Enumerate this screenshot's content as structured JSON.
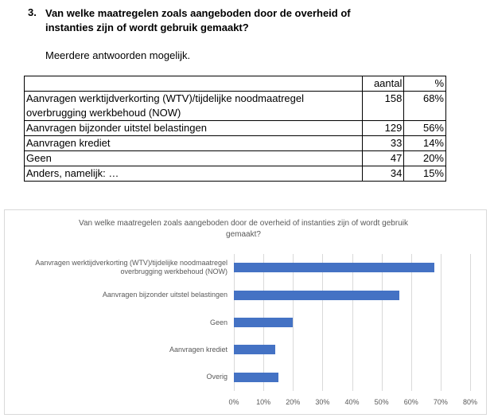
{
  "question": {
    "number": "3.",
    "text": "Van welke maatregelen zoals aangeboden door de overheid of instanties zijn of wordt gebruik gemaakt?",
    "note": "Meerdere antwoorden mogelijk."
  },
  "table": {
    "header": [
      "",
      "aantal",
      "%"
    ],
    "rows": [
      [
        "Aanvragen werktijdverkorting (WTV)/tijdelijke noodmaatregel overbrugging werkbehoud (NOW)",
        "158",
        "68%"
      ],
      [
        "Aanvragen bijzonder uitstel belastingen",
        "129",
        "56%"
      ],
      [
        "Aanvragen krediet",
        "33",
        "14%"
      ],
      [
        "Geen",
        "47",
        "20%"
      ],
      [
        "Anders, namelijk: …",
        "34",
        "15%"
      ]
    ]
  },
  "chart_data": {
    "type": "hbar",
    "title": "Van welke maatregelen zoals aangeboden door de overheid of instanties zijn of wordt gebruik gemaakt?",
    "categories": [
      "Aanvragen werktijdverkorting (WTV)/tijdelijke noodmaatregel overbrugging werkbehoud (NOW)",
      "Aanvragen bijzonder uitstel belastingen",
      "Geen",
      "Aanvragen krediet",
      "Overig"
    ],
    "values": [
      68,
      56,
      20,
      14,
      15
    ],
    "color": "#4472c4",
    "xlim": [
      0,
      80
    ],
    "xticks": [
      {
        "value": 0,
        "label": "0%"
      },
      {
        "value": 10,
        "label": "10%"
      },
      {
        "value": 20,
        "label": "20%"
      },
      {
        "value": 30,
        "label": "30%"
      },
      {
        "value": 40,
        "label": "40%"
      },
      {
        "value": 50,
        "label": "50%"
      },
      {
        "value": 60,
        "label": "60%"
      },
      {
        "value": 70,
        "label": "70%"
      },
      {
        "value": 80,
        "label": "80%"
      }
    ],
    "grid": true
  }
}
